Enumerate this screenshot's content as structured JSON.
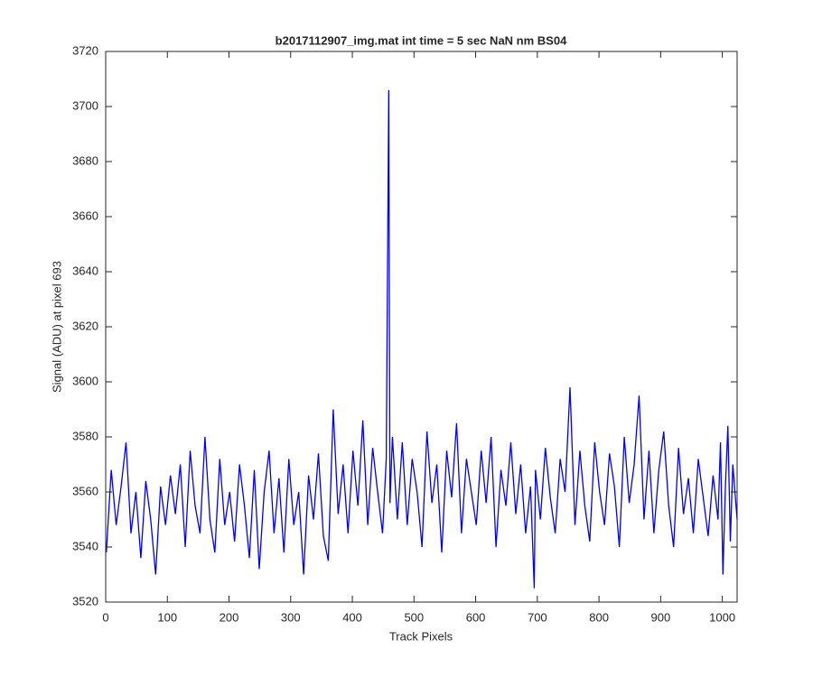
{
  "chart_data": {
    "type": "line",
    "title": "b2017112907_img.mat int time = 5 sec  NaN nm BS04",
    "xlabel": "Track Pixels",
    "ylabel": "Signal (ADU) at pixel 693",
    "xlim": [
      0,
      1024
    ],
    "ylim": [
      3520,
      3720
    ],
    "xticks": [
      0,
      100,
      200,
      300,
      400,
      500,
      600,
      700,
      800,
      900,
      1000
    ],
    "yticks": [
      3520,
      3540,
      3560,
      3580,
      3600,
      3620,
      3640,
      3660,
      3680,
      3700,
      3720
    ],
    "grid": false,
    "x": [
      1,
      9,
      17,
      25,
      33,
      41,
      49,
      57,
      65,
      73,
      81,
      89,
      97,
      105,
      113,
      121,
      129,
      137,
      145,
      153,
      161,
      169,
      177,
      185,
      193,
      201,
      209,
      217,
      225,
      233,
      241,
      249,
      257,
      265,
      273,
      281,
      289,
      297,
      305,
      313,
      321,
      329,
      337,
      345,
      353,
      361,
      369,
      377,
      385,
      393,
      401,
      409,
      417,
      425,
      433,
      441,
      449,
      455,
      459,
      461,
      465,
      473,
      481,
      489,
      497,
      505,
      513,
      521,
      529,
      537,
      545,
      553,
      561,
      569,
      577,
      585,
      593,
      601,
      609,
      617,
      625,
      633,
      641,
      649,
      657,
      665,
      673,
      681,
      689,
      695,
      697,
      705,
      713,
      721,
      729,
      737,
      745,
      753,
      761,
      769,
      777,
      785,
      793,
      801,
      809,
      817,
      825,
      833,
      841,
      849,
      857,
      865,
      873,
      881,
      889,
      897,
      905,
      913,
      921,
      929,
      937,
      945,
      953,
      961,
      969,
      977,
      985,
      993,
      997,
      1001,
      1005,
      1009,
      1013,
      1017,
      1024
    ],
    "series": [
      {
        "color": "#0000ff",
        "values": [
          3538,
          3568,
          3548,
          3562,
          3578,
          3545,
          3560,
          3536,
          3564,
          3550,
          3530,
          3562,
          3548,
          3566,
          3552,
          3570,
          3540,
          3575,
          3555,
          3545,
          3580,
          3550,
          3538,
          3572,
          3548,
          3560,
          3542,
          3570,
          3555,
          3536,
          3568,
          3532,
          3560,
          3575,
          3545,
          3565,
          3538,
          3572,
          3548,
          3560,
          3530,
          3566,
          3550,
          3574,
          3544,
          3535,
          3590,
          3552,
          3570,
          3545,
          3575,
          3555,
          3586,
          3548,
          3576,
          3560,
          3545,
          3572,
          3706,
          3556,
          3580,
          3550,
          3578,
          3548,
          3572,
          3560,
          3540,
          3582,
          3556,
          3570,
          3538,
          3575,
          3558,
          3585,
          3545,
          3572,
          3560,
          3548,
          3575,
          3556,
          3580,
          3540,
          3568,
          3555,
          3578,
          3552,
          3570,
          3545,
          3562,
          3525,
          3568,
          3550,
          3576,
          3558,
          3545,
          3572,
          3560,
          3598,
          3548,
          3575,
          3555,
          3542,
          3578,
          3560,
          3548,
          3574,
          3562,
          3540,
          3580,
          3556,
          3570,
          3595,
          3550,
          3575,
          3545,
          3568,
          3582,
          3555,
          3540,
          3576,
          3552,
          3565,
          3545,
          3572,
          3558,
          3544,
          3566,
          3550,
          3578,
          3530,
          3562,
          3584,
          3542,
          3570,
          3550
        ]
      }
    ]
  }
}
